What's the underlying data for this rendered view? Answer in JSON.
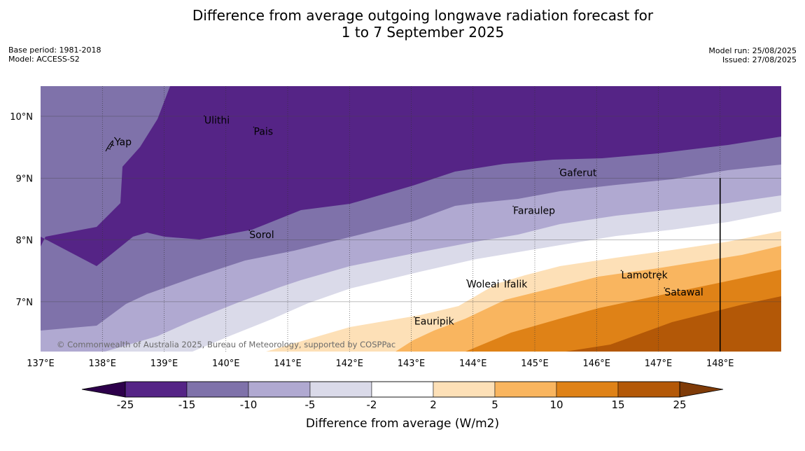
{
  "title": {
    "line1": "Difference from average outgoing longwave radiation forecast for",
    "line2": "1 to 7 September 2025"
  },
  "meta_left": {
    "base_period": "Base period: 1981-2018",
    "model": "Model: ACCESS-S2"
  },
  "meta_right": {
    "model_run": "Model run: 25/08/2025",
    "issued": "Issued: 27/08/2025"
  },
  "map": {
    "lon_range": [
      137,
      149
    ],
    "lat_range": [
      6.2,
      10.5
    ],
    "lon_ticks": [
      "137°E",
      "138°E",
      "139°E",
      "140°E",
      "141°E",
      "142°E",
      "143°E",
      "144°E",
      "145°E",
      "146°E",
      "147°E",
      "148°E"
    ],
    "lat_ticks": [
      "10°N",
      "9°N",
      "8°N",
      "7°N"
    ],
    "places": [
      {
        "name": "Yap",
        "lon": 138.2,
        "lat": 9.53
      },
      {
        "name": "Ulithi",
        "lon": 139.65,
        "lat": 9.88
      },
      {
        "name": "Pais",
        "lon": 140.45,
        "lat": 9.7
      },
      {
        "name": "Gaferut",
        "lon": 145.4,
        "lat": 9.03
      },
      {
        "name": "Faraulep",
        "lon": 144.65,
        "lat": 8.42
      },
      {
        "name": "Sorol",
        "lon": 140.38,
        "lat": 8.03
      },
      {
        "name": "Woleai",
        "lon": 143.9,
        "lat": 7.23
      },
      {
        "name": "Ifalik",
        "lon": 144.5,
        "lat": 7.23
      },
      {
        "name": "Lamotrek",
        "lon": 146.4,
        "lat": 7.38
      },
      {
        "name": "Satawal",
        "lon": 147.1,
        "lat": 7.1
      },
      {
        "name": "Eauripik",
        "lon": 143.05,
        "lat": 6.63
      }
    ],
    "copyright": "© Commonwealth of Australia 2025, Bureau of Meteorology, supported by COSPPac",
    "colors": {
      "band_lt_neg15": "#552486",
      "band_neg15_neg10": "#7f72aa",
      "band_neg10_neg5": "#b0a9d1",
      "band_neg5_neg2": "#dadae9",
      "band_neg2_2": "#ffffff",
      "band_2_5": "#fde0b7",
      "band_5_10": "#f9b55f",
      "band_10_15": "#df8217",
      "band_15_25": "#b35807"
    }
  },
  "colorbar": {
    "label": "Difference from average (W/m2)",
    "ticks": [
      "-25",
      "-15",
      "-10",
      "-5",
      "-2",
      "2",
      "5",
      "10",
      "15",
      "25"
    ],
    "colors": [
      "#552486",
      "#7f72aa",
      "#b0a9d1",
      "#dadae9",
      "#ffffff",
      "#fde0b7",
      "#f9b55f",
      "#df8217",
      "#b35807"
    ],
    "under_color": "#2d004b",
    "over_color": "#7f3b08"
  }
}
